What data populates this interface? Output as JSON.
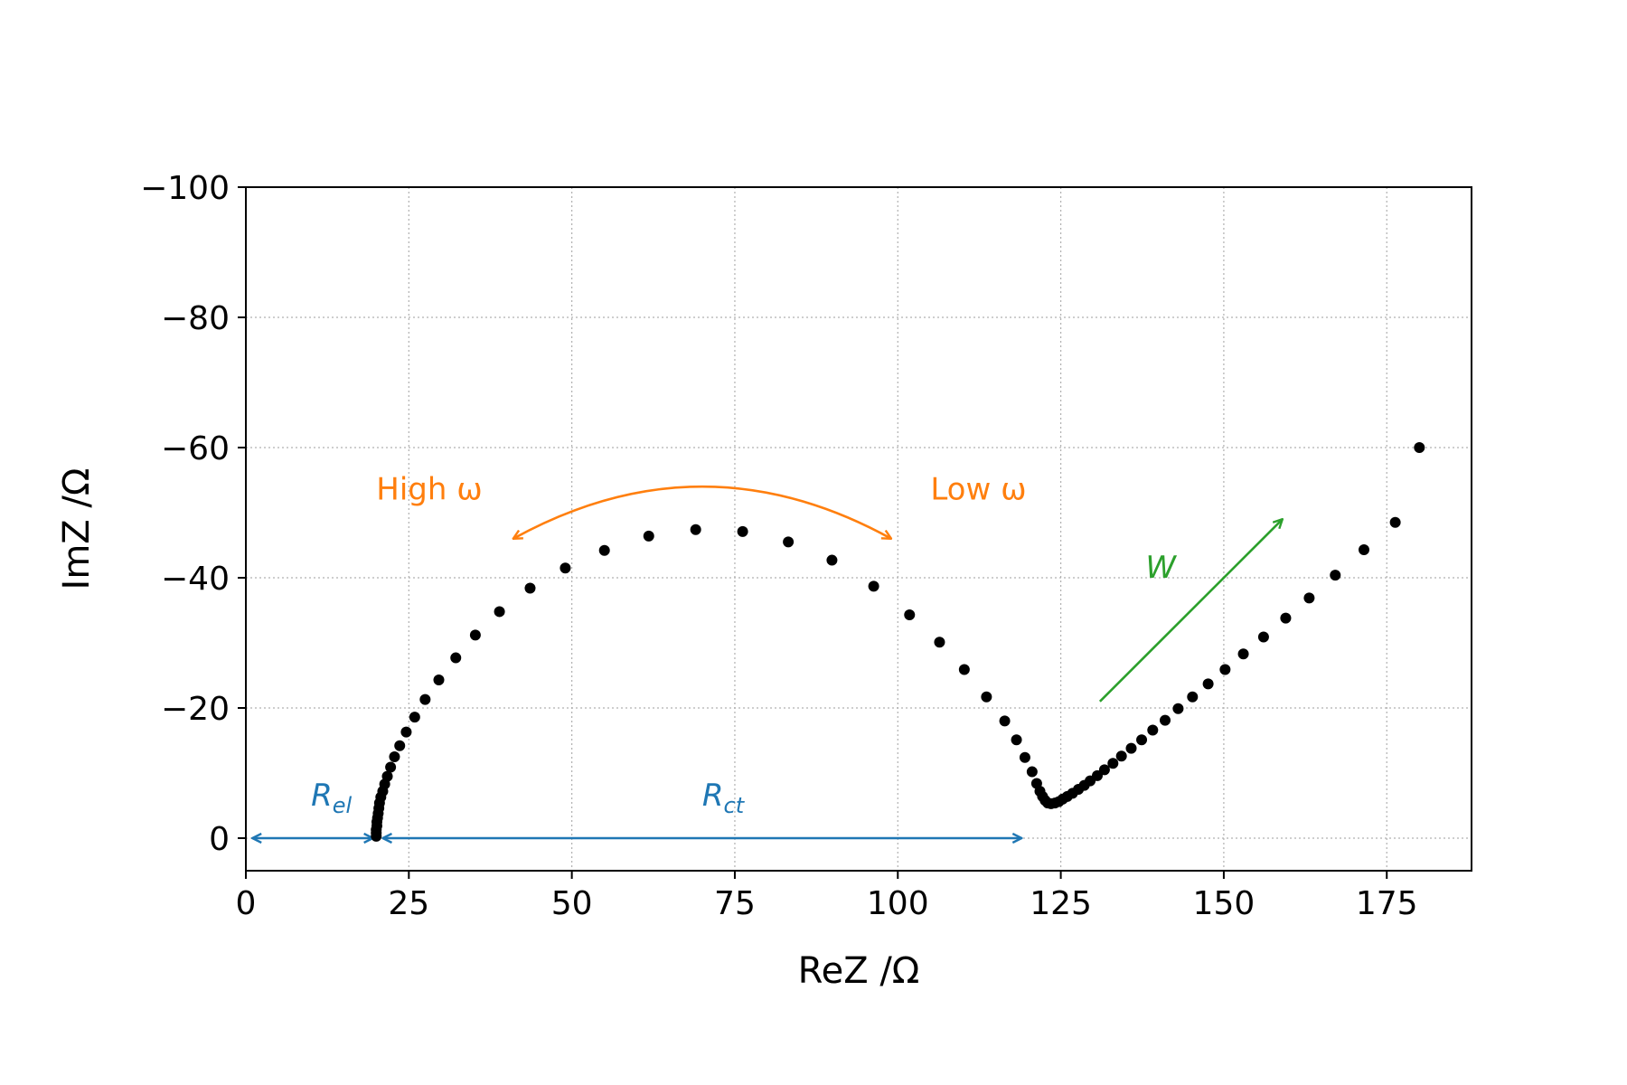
{
  "chart_data": {
    "type": "scatter",
    "xlabel": "ReZ /Ω",
    "ylabel": "ImZ /Ω",
    "xlim": [
      0,
      188
    ],
    "ylim": [
      5,
      -100
    ],
    "y_inverted": true,
    "xticks": [
      0,
      25,
      50,
      75,
      100,
      125,
      150,
      175
    ],
    "yticks": [
      -100,
      -80,
      -60,
      -40,
      -20,
      0
    ],
    "xtick_labels": [
      "0",
      "25",
      "50",
      "75",
      "100",
      "125",
      "150",
      "175"
    ],
    "ytick_labels": [
      "−100",
      "−80",
      "−60",
      "−40",
      "−20",
      "0"
    ],
    "grid": true,
    "marker_color": "#000000",
    "points": [
      [
        20.0,
        -0.3
      ],
      [
        20.0,
        -0.8
      ],
      [
        20.0,
        -1.3
      ],
      [
        20.1,
        -1.9
      ],
      [
        20.1,
        -2.5
      ],
      [
        20.2,
        -3.1
      ],
      [
        20.3,
        -3.8
      ],
      [
        20.4,
        -4.6
      ],
      [
        20.5,
        -5.4
      ],
      [
        20.7,
        -6.3
      ],
      [
        21.0,
        -7.2
      ],
      [
        21.3,
        -8.3
      ],
      [
        21.7,
        -9.5
      ],
      [
        22.2,
        -10.9
      ],
      [
        22.8,
        -12.5
      ],
      [
        23.6,
        -14.2
      ],
      [
        24.6,
        -16.3
      ],
      [
        25.9,
        -18.6
      ],
      [
        27.5,
        -21.3
      ],
      [
        29.6,
        -24.3
      ],
      [
        32.2,
        -27.7
      ],
      [
        35.2,
        -31.2
      ],
      [
        38.9,
        -34.8
      ],
      [
        43.6,
        -38.4
      ],
      [
        49.0,
        -41.5
      ],
      [
        55.0,
        -44.2
      ],
      [
        61.8,
        -46.4
      ],
      [
        69.0,
        -47.4
      ],
      [
        76.2,
        -47.1
      ],
      [
        83.2,
        -45.5
      ],
      [
        89.9,
        -42.7
      ],
      [
        96.3,
        -38.7
      ],
      [
        101.8,
        -34.3
      ],
      [
        106.4,
        -30.1
      ],
      [
        110.2,
        -25.9
      ],
      [
        113.6,
        -21.7
      ],
      [
        116.4,
        -18.0
      ],
      [
        118.2,
        -15.1
      ],
      [
        119.5,
        -12.4
      ],
      [
        120.6,
        -10.2
      ],
      [
        121.3,
        -8.4
      ],
      [
        121.8,
        -7.2
      ],
      [
        122.2,
        -6.4
      ],
      [
        122.6,
        -5.8
      ],
      [
        123.0,
        -5.4
      ],
      [
        123.5,
        -5.3
      ],
      [
        124.1,
        -5.4
      ],
      [
        124.7,
        -5.6
      ],
      [
        125.3,
        -6.0
      ],
      [
        126.0,
        -6.4
      ],
      [
        126.8,
        -6.9
      ],
      [
        127.7,
        -7.5
      ],
      [
        128.6,
        -8.1
      ],
      [
        129.5,
        -8.8
      ],
      [
        130.6,
        -9.6
      ],
      [
        131.7,
        -10.5
      ],
      [
        133.0,
        -11.5
      ],
      [
        134.3,
        -12.6
      ],
      [
        135.8,
        -13.8
      ],
      [
        137.4,
        -15.1
      ],
      [
        139.1,
        -16.6
      ],
      [
        141.0,
        -18.1
      ],
      [
        143.0,
        -19.9
      ],
      [
        145.2,
        -21.7
      ],
      [
        147.6,
        -23.7
      ],
      [
        150.2,
        -25.9
      ],
      [
        153.0,
        -28.3
      ],
      [
        156.1,
        -30.9
      ],
      [
        159.5,
        -33.8
      ],
      [
        163.1,
        -36.9
      ],
      [
        167.1,
        -40.4
      ],
      [
        171.5,
        -44.3
      ],
      [
        176.3,
        -48.5
      ],
      [
        180.0,
        -60.0
      ]
    ],
    "annotations": [
      {
        "name": "high-frequency-label",
        "text": "High ω",
        "color": "#ff7f0e",
        "x": 20,
        "y": -52
      },
      {
        "name": "low-frequency-label",
        "text": "Low ω",
        "color": "#ff7f0e",
        "x": 105,
        "y": -52
      },
      {
        "name": "warburg-label",
        "text": "W",
        "color": "#2ca02c",
        "x": 138,
        "y": -40
      },
      {
        "name": "electrolyte-resistance-label",
        "text": "R",
        "sub": "el",
        "color": "#1f77b4",
        "x": 10,
        "y": -5
      },
      {
        "name": "charge-transfer-resistance-label",
        "text": "R",
        "sub": "ct",
        "color": "#1f77b4",
        "x": 70,
        "y": -5
      }
    ],
    "arrows": [
      {
        "name": "electrolyte-resistance-arrow",
        "color": "#1f77b4",
        "from": [
          1,
          0
        ],
        "to": [
          19.5,
          0
        ],
        "two_way": true
      },
      {
        "name": "charge-transfer-resistance-arrow",
        "color": "#1f77b4",
        "from": [
          21,
          0
        ],
        "to": [
          119,
          0
        ],
        "two_way": true
      },
      {
        "name": "warburg-arrow",
        "color": "#2ca02c",
        "from": [
          131,
          -21
        ],
        "to": [
          159,
          -49
        ],
        "two_way": false
      },
      {
        "name": "frequency-arc-arrow",
        "color": "#ff7f0e",
        "from": [
          41,
          -46
        ],
        "to": [
          99,
          -46
        ],
        "peak_y": -54,
        "two_way": true
      }
    ]
  }
}
